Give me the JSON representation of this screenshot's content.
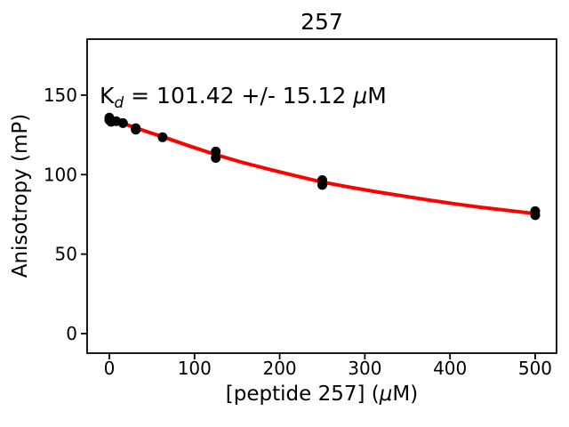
{
  "figure": {
    "title": "257",
    "annotation": {
      "full": "K_d = 101.42 +/- 15.12 μM",
      "k": "K",
      "sub": "d",
      "rest": " = 101.42 +/- 15.12 ",
      "mu": "μ",
      "m": "M"
    },
    "xlabel": {
      "full": "[peptide 257] (μM)",
      "pre": "[peptide 257] (",
      "mu": "μ",
      "post": "M)"
    },
    "ylabel": "Anisotropy (mP)"
  },
  "chart_data": {
    "type": "scatter",
    "title": "257",
    "xlabel": "[peptide 257] (μM)",
    "ylabel": "Anisotropy (mP)",
    "annotation": "K_d = 101.42 +/- 15.12 μM",
    "fit_parameters": {
      "kd_uM": 101.42,
      "kd_error_uM": 15.12
    },
    "xlim": [
      -26.1,
      525.1
    ],
    "ylim": [
      -12.3,
      185.2
    ],
    "xticks": [
      "0",
      "100",
      "200",
      "300",
      "400",
      "500"
    ],
    "yticks": [
      "0",
      "50",
      "100",
      "150"
    ],
    "grid": false,
    "legend": false,
    "colors": {
      "scatter": "#000000",
      "fit_line": "#ff0000",
      "text": "#000000",
      "background": "#ffffff"
    },
    "series": [
      {
        "name": "binding fit curve",
        "type": "line",
        "color": "#ff0000",
        "line_width": 4,
        "points": [
          [
            0,
            135.2
          ],
          [
            15,
            132.4
          ],
          [
            31,
            129.5
          ],
          [
            46,
            126.7
          ],
          [
            62.5,
            123.8
          ],
          [
            93,
            118.2
          ],
          [
            125,
            112.5
          ],
          [
            156,
            107.7
          ],
          [
            187,
            103.4
          ],
          [
            219,
            99.2
          ],
          [
            250,
            95.3
          ],
          [
            281,
            92.2
          ],
          [
            312,
            89.3
          ],
          [
            344,
            86.6
          ],
          [
            375,
            84.0
          ],
          [
            406,
            81.6
          ],
          [
            437,
            79.4
          ],
          [
            469,
            77.4
          ],
          [
            500,
            75.5
          ]
        ]
      },
      {
        "name": "measured anisotropy",
        "type": "scatter",
        "color": "#000000",
        "marker_radius": 5.5,
        "points": [
          [
            0,
            135.8
          ],
          [
            0,
            134.3
          ],
          [
            2,
            133.2
          ],
          [
            8,
            133.6
          ],
          [
            16,
            132.4
          ],
          [
            31,
            129.2
          ],
          [
            31,
            128.3
          ],
          [
            62.5,
            123.5
          ],
          [
            125,
            114.5
          ],
          [
            125,
            110.5
          ],
          [
            250,
            96.5
          ],
          [
            250,
            93.5
          ],
          [
            500,
            77.0
          ],
          [
            500,
            74.5
          ]
        ]
      }
    ]
  }
}
